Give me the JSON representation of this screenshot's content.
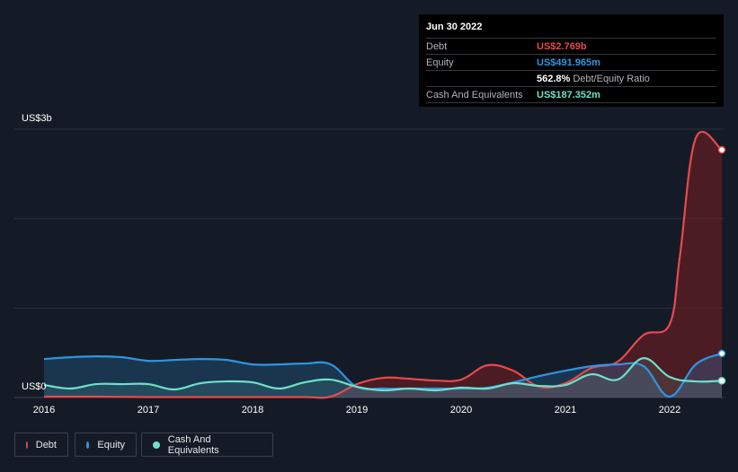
{
  "tooltip": {
    "date": "Jun 30 2022",
    "rows": [
      {
        "label": "Debt",
        "value": "US$2.769b",
        "color": "#e64a4e"
      },
      {
        "label": "Equity",
        "value": "US$491.965m",
        "color": "#2f95e2"
      },
      {
        "label": "",
        "value": "562.8%",
        "suffix": "Debt/Equity Ratio",
        "color": "#ffffff"
      },
      {
        "label": "Cash And Equivalents",
        "value": "US$187.352m",
        "color": "#6ee1c9"
      }
    ]
  },
  "legend": [
    {
      "label": "Debt",
      "color": "#e64a4e"
    },
    {
      "label": "Equity",
      "color": "#2f95e2"
    },
    {
      "label": "Cash And Equivalents",
      "color": "#6ee1c9"
    }
  ],
  "chart_data": {
    "type": "line",
    "ytop_label": "US$3b",
    "ybottom_label": "US$0",
    "ylim": [
      0,
      3.0
    ],
    "xlim": [
      2016.0,
      2022.5
    ],
    "x_ticks": [
      "2016",
      "2017",
      "2018",
      "2019",
      "2020",
      "2021",
      "2022"
    ],
    "grid": true,
    "legend_position": "bottom-left",
    "series": [
      {
        "name": "Debt",
        "color": "#e64a4e",
        "x": [
          2016.0,
          2016.5,
          2017.0,
          2017.5,
          2018.0,
          2018.5,
          2018.75,
          2019.0,
          2019.25,
          2019.5,
          2019.75,
          2020.0,
          2020.25,
          2020.5,
          2020.75,
          2021.0,
          2021.25,
          2021.5,
          2021.75,
          2022.0,
          2022.1,
          2022.25,
          2022.5
        ],
        "values": [
          0.01,
          0.01,
          0.005,
          0.005,
          0.005,
          0.005,
          0.01,
          0.15,
          0.22,
          0.21,
          0.19,
          0.2,
          0.36,
          0.3,
          0.12,
          0.16,
          0.33,
          0.4,
          0.7,
          0.82,
          1.6,
          2.9,
          2.769
        ]
      },
      {
        "name": "Equity",
        "color": "#2f95e2",
        "x": [
          2016.0,
          2016.25,
          2016.5,
          2016.75,
          2017.0,
          2017.25,
          2017.5,
          2017.75,
          2018.0,
          2018.25,
          2018.5,
          2018.75,
          2019.0,
          2019.25,
          2019.5,
          2019.75,
          2020.0,
          2020.25,
          2020.5,
          2020.75,
          2021.0,
          2021.25,
          2021.5,
          2021.75,
          2022.0,
          2022.25,
          2022.5
        ],
        "values": [
          0.43,
          0.45,
          0.46,
          0.45,
          0.41,
          0.42,
          0.43,
          0.42,
          0.37,
          0.37,
          0.38,
          0.37,
          0.12,
          0.1,
          0.1,
          0.1,
          0.1,
          0.11,
          0.17,
          0.24,
          0.3,
          0.35,
          0.37,
          0.35,
          0.01,
          0.37,
          0.491965
        ]
      },
      {
        "name": "Cash And Equivalents",
        "color": "#6ee1c9",
        "x": [
          2016.0,
          2016.25,
          2016.5,
          2016.75,
          2017.0,
          2017.25,
          2017.5,
          2017.75,
          2018.0,
          2018.25,
          2018.5,
          2018.75,
          2019.0,
          2019.25,
          2019.5,
          2019.75,
          2020.0,
          2020.25,
          2020.5,
          2020.75,
          2021.0,
          2021.25,
          2021.5,
          2021.75,
          2022.0,
          2022.25,
          2022.5
        ],
        "values": [
          0.14,
          0.1,
          0.15,
          0.15,
          0.15,
          0.09,
          0.16,
          0.18,
          0.17,
          0.1,
          0.17,
          0.2,
          0.12,
          0.08,
          0.1,
          0.08,
          0.11,
          0.1,
          0.16,
          0.13,
          0.14,
          0.26,
          0.2,
          0.44,
          0.23,
          0.18,
          0.187352
        ]
      }
    ]
  }
}
